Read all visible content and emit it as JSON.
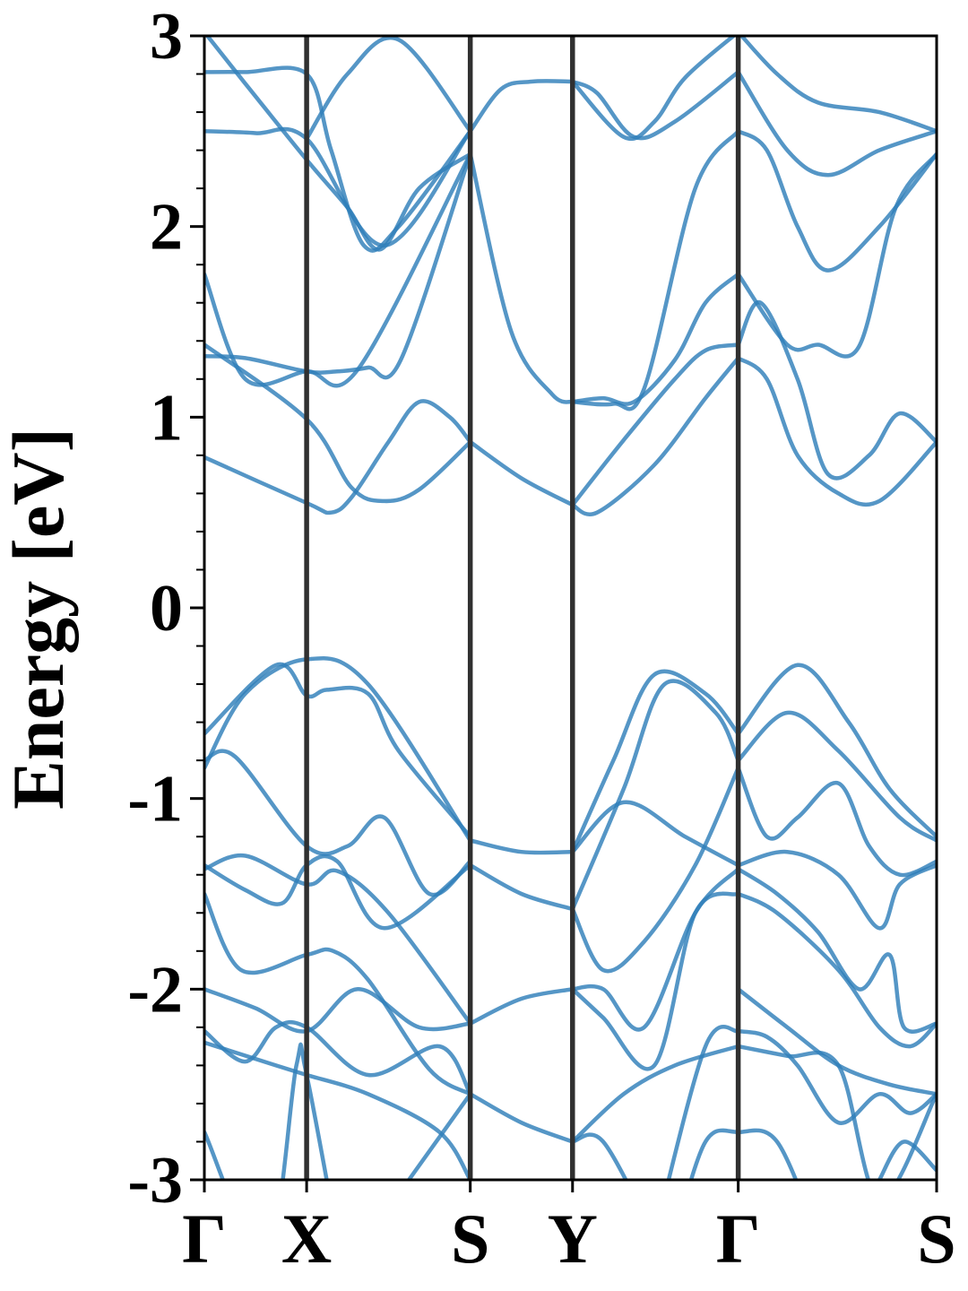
{
  "colors": {
    "band": "#2f7fba",
    "kpath_line": "#303030",
    "axis": "#000000"
  },
  "chart_data": {
    "type": "line",
    "title": "",
    "xlabel": "",
    "ylabel": "Energy [eV]",
    "ylim": [
      -3,
      3
    ],
    "xlim": [
      0,
      3.58
    ],
    "grid": false,
    "y_ticks": [
      3,
      2,
      1,
      0,
      -1,
      -2,
      -3
    ],
    "y_tick_labels": [
      "3",
      "2",
      "1",
      "0",
      "-1",
      "-2",
      "-3"
    ],
    "y_minor_step": 0.2,
    "k_points": [
      {
        "label": "Γ",
        "x": 0.0
      },
      {
        "label": "X",
        "x": 0.5
      },
      {
        "label": "S",
        "x": 1.3
      },
      {
        "label": "Y",
        "x": 1.8
      },
      {
        "label": "Γ",
        "x": 2.61
      },
      {
        "label": "S",
        "x": 3.58
      }
    ],
    "series": [
      {
        "x": [
          0,
          0.5,
          0.62,
          0.72,
          0.9,
          1.05,
          1.2,
          1.3
        ],
        "values": [
          0.79,
          0.55,
          0.5,
          0.58,
          0.87,
          1.08,
          1.0,
          0.87
        ]
      },
      {
        "x": [
          0,
          0.5,
          0.72,
          0.88,
          1.05,
          1.3
        ],
        "values": [
          1.38,
          0.99,
          0.63,
          0.56,
          0.62,
          0.87
        ]
      },
      {
        "x": [
          0,
          0.2,
          0.5,
          0.75,
          1.3
        ],
        "values": [
          1.75,
          1.2,
          1.24,
          1.25,
          2.38
        ]
      },
      {
        "x": [
          0,
          0.2,
          0.5,
          0.65,
          0.8,
          0.96,
          1.3
        ],
        "values": [
          1.32,
          1.31,
          1.24,
          1.24,
          1.26,
          1.3,
          2.38
        ]
      },
      {
        "x": [
          0,
          0.25,
          0.5,
          0.88,
          1.3
        ],
        "values": [
          2.5,
          2.49,
          2.46,
          1.9,
          2.5
        ]
      },
      {
        "x": [
          0,
          0.2,
          0.5,
          0.62,
          0.78,
          0.95,
          1.3
        ],
        "values": [
          2.81,
          2.81,
          2.8,
          2.4,
          1.9,
          2.0,
          2.5
        ]
      },
      {
        "x": [
          0,
          0.2,
          0.5,
          0.7,
          0.86,
          1.05,
          1.3
        ],
        "values": [
          3.02,
          2.75,
          2.35,
          2.1,
          1.88,
          2.2,
          2.38
        ]
      },
      {
        "x": [
          0.5,
          0.7,
          0.95,
          1.3
        ],
        "values": [
          2.46,
          2.8,
          2.98,
          2.5
        ]
      },
      {
        "x": [
          1.3,
          1.45,
          1.6,
          1.8
        ],
        "values": [
          2.5,
          2.72,
          2.76,
          2.76
        ]
      },
      {
        "x": [
          1.3,
          1.5,
          1.7,
          1.8
        ],
        "values": [
          2.38,
          1.45,
          1.12,
          1.08
        ]
      },
      {
        "x": [
          1.3,
          1.55,
          1.8
        ],
        "values": [
          0.87,
          0.68,
          0.54
        ]
      },
      {
        "x": [
          1.8,
          1.92,
          2.1,
          2.3,
          2.61
        ],
        "values": [
          2.76,
          2.7,
          2.47,
          2.55,
          2.81
        ]
      },
      {
        "x": [
          1.8,
          2.05,
          2.2,
          2.35,
          2.61
        ],
        "values": [
          2.76,
          2.47,
          2.55,
          2.78,
          3.02
        ]
      },
      {
        "x": [
          1.8,
          1.95,
          2.1,
          2.3,
          2.45,
          2.61
        ],
        "values": [
          1.08,
          1.1,
          1.08,
          1.3,
          1.6,
          1.75
        ]
      },
      {
        "x": [
          1.8,
          2.0,
          2.15,
          2.4,
          2.61
        ],
        "values": [
          1.08,
          1.07,
          1.15,
          2.2,
          2.5
        ]
      },
      {
        "x": [
          1.8,
          2.05,
          2.3,
          2.45,
          2.61
        ],
        "values": [
          0.54,
          0.88,
          1.2,
          1.35,
          1.38
        ]
      },
      {
        "x": [
          1.8,
          1.92,
          2.2,
          2.45,
          2.61
        ],
        "values": [
          0.54,
          0.5,
          0.75,
          1.1,
          1.31
        ]
      },
      {
        "x": [
          2.61,
          2.8,
          3.0,
          3.3,
          3.58
        ],
        "values": [
          3.02,
          2.8,
          2.65,
          2.6,
          2.5
        ]
      },
      {
        "x": [
          2.61,
          2.85,
          3.05,
          3.3,
          3.58
        ],
        "values": [
          2.81,
          2.4,
          2.27,
          2.4,
          2.5
        ]
      },
      {
        "x": [
          2.61,
          2.75,
          2.9,
          3.05,
          3.3,
          3.58
        ],
        "values": [
          2.5,
          2.4,
          2.0,
          1.77,
          2.0,
          2.38
        ]
      },
      {
        "x": [
          2.61,
          2.85,
          3.0,
          3.2,
          3.38,
          3.58
        ],
        "values": [
          1.75,
          1.38,
          1.38,
          1.37,
          2.1,
          2.38
        ]
      },
      {
        "x": [
          2.61,
          2.72,
          2.9,
          3.05,
          3.25,
          3.4,
          3.58
        ],
        "values": [
          1.38,
          1.6,
          1.2,
          0.7,
          0.8,
          1.02,
          0.87
        ]
      },
      {
        "x": [
          2.61,
          2.75,
          2.9,
          3.1,
          3.3,
          3.58
        ],
        "values": [
          1.31,
          1.2,
          0.8,
          0.6,
          0.56,
          0.87
        ]
      },
      {
        "x": [
          0,
          0.35,
          0.5,
          0.6,
          0.8,
          0.95,
          1.3
        ],
        "values": [
          -0.66,
          -0.3,
          -0.46,
          -0.43,
          -0.45,
          -0.75,
          -1.2
        ]
      },
      {
        "x": [
          0,
          0.2,
          0.5,
          0.8,
          1.3
        ],
        "values": [
          -0.84,
          -0.45,
          -0.27,
          -0.4,
          -1.22
        ]
      },
      {
        "x": [
          0,
          0.15,
          0.5,
          0.7,
          0.88,
          1.1,
          1.3
        ],
        "values": [
          -0.8,
          -0.78,
          -1.25,
          -1.25,
          -1.1,
          -1.5,
          -1.33
        ]
      },
      {
        "x": [
          0,
          0.2,
          0.38,
          0.5,
          0.65,
          0.88,
          1.3
        ],
        "values": [
          -1.35,
          -1.48,
          -1.55,
          -1.35,
          -1.33,
          -1.68,
          -1.35
        ]
      },
      {
        "x": [
          0,
          0.2,
          0.5,
          0.65,
          0.9,
          1.3
        ],
        "values": [
          -1.37,
          -1.3,
          -1.45,
          -1.38,
          -1.6,
          -2.18
        ]
      },
      {
        "x": [
          0,
          0.18,
          0.5,
          0.63,
          0.8,
          1.1,
          1.3
        ],
        "values": [
          -1.5,
          -1.9,
          -1.82,
          -1.8,
          -1.95,
          -2.42,
          -2.55
        ]
      },
      {
        "x": [
          0,
          0.25,
          0.5,
          0.75,
          1.05,
          1.3
        ],
        "values": [
          -2.0,
          -2.1,
          -2.22,
          -2.0,
          -2.2,
          -2.18
        ]
      },
      {
        "x": [
          0,
          0.2,
          0.35,
          0.5,
          0.8,
          1.15,
          1.3
        ],
        "values": [
          -2.22,
          -2.38,
          -2.2,
          -2.2,
          -2.45,
          -2.3,
          -2.55
        ]
      },
      {
        "x": [
          0,
          0.35,
          0.5,
          0.8,
          1.15,
          1.3
        ],
        "values": [
          -2.28,
          -2.4,
          -2.45,
          -2.55,
          -2.75,
          -3.0
        ]
      },
      {
        "x": [
          0,
          0.3,
          0.45,
          0.5,
          0.7
        ],
        "values": [
          -2.75,
          -3.4,
          -2.4,
          -2.45,
          -3.6
        ]
      },
      {
        "x": [
          1.0,
          1.3
        ],
        "values": [
          -3.0,
          -2.55
        ]
      },
      {
        "x": [
          1.3,
          1.55,
          1.8
        ],
        "values": [
          -1.22,
          -1.28,
          -1.28
        ]
      },
      {
        "x": [
          1.3,
          1.55,
          1.8
        ],
        "values": [
          -1.35,
          -1.5,
          -1.58
        ]
      },
      {
        "x": [
          1.3,
          1.55,
          1.8
        ],
        "values": [
          -2.18,
          -2.05,
          -2.0
        ]
      },
      {
        "x": [
          1.3,
          1.55,
          1.8
        ],
        "values": [
          -2.55,
          -2.7,
          -2.8
        ]
      },
      {
        "x": [
          1.8,
          2.05,
          2.35,
          2.61
        ],
        "values": [
          -1.28,
          -1.02,
          -1.2,
          -1.35
        ]
      },
      {
        "x": [
          1.8,
          2.0,
          2.2,
          2.45,
          2.61
        ],
        "values": [
          -1.28,
          -0.8,
          -0.35,
          -0.45,
          -0.66
        ]
      },
      {
        "x": [
          1.8,
          2.05,
          2.25,
          2.5,
          2.61
        ],
        "values": [
          -1.58,
          -0.95,
          -0.4,
          -0.55,
          -0.8
        ]
      },
      {
        "x": [
          1.8,
          1.95,
          2.15,
          2.4,
          2.61
        ],
        "values": [
          -1.58,
          -1.9,
          -1.75,
          -1.35,
          -0.84
        ]
      },
      {
        "x": [
          1.8,
          1.95,
          2.15,
          2.4,
          2.61
        ],
        "values": [
          -2.0,
          -2.0,
          -2.2,
          -1.6,
          -1.37
        ]
      },
      {
        "x": [
          1.8,
          1.95,
          2.2,
          2.4,
          2.61
        ],
        "values": [
          -2.0,
          -2.15,
          -2.4,
          -1.6,
          -1.5
        ]
      },
      {
        "x": [
          1.8,
          2.05,
          2.3,
          2.61
        ],
        "values": [
          -2.8,
          -2.55,
          -2.4,
          -2.3
        ]
      },
      {
        "x": [
          1.8,
          1.95,
          2.2
        ],
        "values": [
          -2.8,
          -2.8,
          -3.3
        ]
      },
      {
        "x": [
          2.2,
          2.45,
          2.61
        ],
        "values": [
          -3.3,
          -2.3,
          -2.22
        ]
      },
      {
        "x": [
          2.3,
          2.45,
          2.61,
          2.8,
          3.0
        ],
        "values": [
          -3.3,
          -2.8,
          -2.75,
          -2.8,
          -3.3
        ]
      },
      {
        "x": [
          2.61,
          2.9,
          3.15,
          3.35,
          3.58
        ],
        "values": [
          -0.66,
          -0.3,
          -0.6,
          -0.95,
          -1.2
        ]
      },
      {
        "x": [
          2.61,
          2.85,
          3.1,
          3.4,
          3.58
        ],
        "values": [
          -0.8,
          -0.55,
          -0.75,
          -1.1,
          -1.22
        ]
      },
      {
        "x": [
          2.61,
          2.75,
          2.9,
          3.1,
          3.25,
          3.4,
          3.58
        ],
        "values": [
          -0.84,
          -1.2,
          -1.1,
          -0.92,
          -1.25,
          -1.4,
          -1.33
        ]
      },
      {
        "x": [
          2.61,
          2.85,
          3.1,
          3.3,
          3.4,
          3.58
        ],
        "values": [
          -1.35,
          -1.28,
          -1.4,
          -1.68,
          -1.45,
          -1.35
        ]
      },
      {
        "x": [
          2.61,
          2.8,
          3.0,
          3.2,
          3.35,
          3.42,
          3.58
        ],
        "values": [
          -1.37,
          -1.5,
          -1.7,
          -2.0,
          -1.82,
          -2.2,
          -2.18
        ]
      },
      {
        "x": [
          2.61,
          2.8,
          3.1,
          3.3,
          3.45,
          3.58
        ],
        "values": [
          -1.5,
          -1.6,
          -1.9,
          -2.2,
          -2.3,
          -2.18
        ]
      },
      {
        "x": [
          2.61,
          2.85,
          3.1,
          3.35,
          3.58
        ],
        "values": [
          -2.0,
          -2.2,
          -2.4,
          -2.5,
          -2.55
        ]
      },
      {
        "x": [
          2.61,
          2.75,
          2.9,
          3.1,
          3.3,
          3.45,
          3.58
        ],
        "values": [
          -2.22,
          -2.25,
          -2.4,
          -2.7,
          -2.55,
          -2.65,
          -2.55
        ]
      },
      {
        "x": [
          2.61,
          2.85,
          3.1,
          3.3,
          3.58
        ],
        "values": [
          -2.3,
          -2.35,
          -2.4,
          -3.1,
          -2.55
        ]
      },
      {
        "x": [
          3.3,
          3.42,
          3.58
        ],
        "values": [
          -3.0,
          -2.8,
          -2.95
        ]
      }
    ]
  }
}
